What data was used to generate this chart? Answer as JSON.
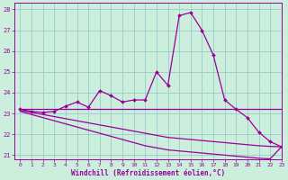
{
  "x": [
    0,
    1,
    2,
    3,
    4,
    5,
    6,
    7,
    8,
    9,
    10,
    11,
    12,
    13,
    14,
    15,
    16,
    17,
    18,
    19,
    20,
    21,
    22,
    23
  ],
  "line_main": [
    23.2,
    23.1,
    23.05,
    23.1,
    23.35,
    23.55,
    23.3,
    24.1,
    23.85,
    23.55,
    23.65,
    23.65,
    25.0,
    24.35,
    27.7,
    27.85,
    27.0,
    25.8,
    23.65,
    23.2,
    22.8,
    22.1,
    21.65,
    21.4
  ],
  "line_flat": [
    23.2,
    23.2,
    23.2,
    23.2,
    23.2,
    23.2,
    23.2,
    23.2,
    23.2,
    23.2,
    23.2,
    23.2,
    23.2,
    23.2,
    23.2,
    23.2,
    23.2,
    23.2,
    23.2,
    23.2,
    23.2,
    23.2,
    23.2,
    23.2
  ],
  "line_decline1": [
    23.15,
    23.05,
    22.95,
    22.85,
    22.75,
    22.65,
    22.55,
    22.45,
    22.35,
    22.25,
    22.15,
    22.05,
    21.95,
    21.85,
    21.8,
    21.75,
    21.7,
    21.65,
    21.6,
    21.55,
    21.5,
    21.45,
    21.42,
    21.4
  ],
  "line_decline2": [
    23.1,
    22.95,
    22.8,
    22.65,
    22.5,
    22.35,
    22.2,
    22.05,
    21.9,
    21.75,
    21.6,
    21.45,
    21.35,
    21.25,
    21.2,
    21.15,
    21.1,
    21.05,
    21.0,
    20.95,
    20.9,
    20.85,
    20.82,
    21.4
  ],
  "color": "#990099",
  "bg_color": "#cceedd",
  "grid_color": "#99cccc",
  "xlabel": "Windchill (Refroidissement éolien,°C)",
  "ylim": [
    20.8,
    28.3
  ],
  "xlim": [
    -0.5,
    23
  ],
  "yticks": [
    21,
    22,
    23,
    24,
    25,
    26,
    27,
    28
  ],
  "xticks": [
    0,
    1,
    2,
    3,
    4,
    5,
    6,
    7,
    8,
    9,
    10,
    11,
    12,
    13,
    14,
    15,
    16,
    17,
    18,
    19,
    20,
    21,
    22,
    23
  ],
  "marker": "D",
  "markersize": 2.0,
  "linewidth": 0.9
}
